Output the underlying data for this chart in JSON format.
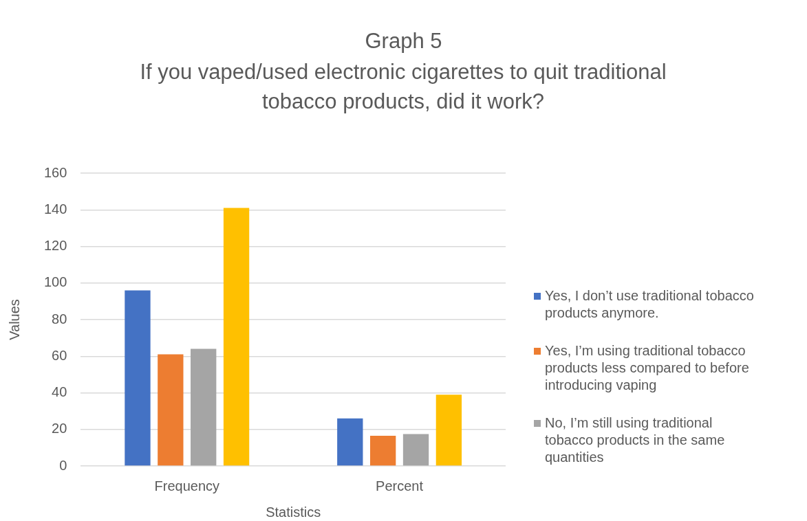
{
  "chart_data": {
    "type": "bar",
    "title": "Graph 5",
    "subtitle": "If you vaped/used electronic cigarettes to quit traditional tobacco products, did it work?",
    "xlabel": "Statistics",
    "ylabel": "Values",
    "categories": [
      "Frequency",
      "Percent"
    ],
    "series": [
      {
        "name": "Yes, I don’t use traditional tobacco products anymore.",
        "color": "#4472c4",
        "values": [
          96,
          26
        ]
      },
      {
        "name": "Yes, I’m using traditional tobacco products less compared to before introducing vaping",
        "color": "#ed7d31",
        "values": [
          61,
          16.5
        ]
      },
      {
        "name": "No, I’m still using traditional tobacco products in the same quantities",
        "color": "#a5a5a5",
        "values": [
          64,
          17.5
        ]
      },
      {
        "color": "#ffc000",
        "values": [
          141,
          39
        ]
      }
    ],
    "ylim": [
      0,
      160
    ],
    "yticks": [
      0,
      20,
      40,
      60,
      80,
      100,
      120,
      140,
      160
    ],
    "grid": "y",
    "legend": "right"
  }
}
